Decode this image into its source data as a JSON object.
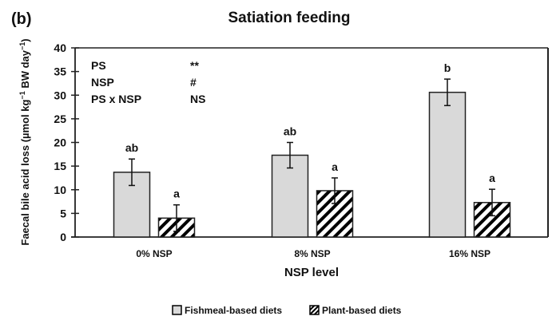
{
  "panel_label": "(b)",
  "chart_data": {
    "type": "bar",
    "title": "Satiation feeding",
    "xlabel": "NSP level",
    "ylabel": "Faecal bile acid loss (µmol kg⁻¹ BW day⁻¹)",
    "ylabel_parts": {
      "base": "Faecal bile acid loss (µmol kg",
      "sup1": "−1",
      "mid": " BW day",
      "sup2": "−1",
      "end": ")"
    },
    "ylim": [
      0,
      40
    ],
    "yticks": [
      0,
      5,
      10,
      15,
      20,
      25,
      30,
      35,
      40
    ],
    "grid": false,
    "categories": [
      "0% NSP",
      "8% NSP",
      "16% NSP"
    ],
    "series": [
      {
        "name": "Fishmeal-based diets",
        "pattern": "solid-light-gray",
        "color": "#d9d9d9",
        "values": [
          13.7,
          17.3,
          30.6
        ],
        "errors": [
          2.8,
          2.7,
          2.8
        ],
        "letters": [
          "ab",
          "ab",
          "b"
        ]
      },
      {
        "name": "Plant-based diets",
        "pattern": "diagonal-hatch",
        "color": "#000000",
        "values": [
          4.0,
          9.8,
          7.3
        ],
        "errors": [
          2.8,
          2.7,
          2.8
        ],
        "letters": [
          "a",
          "a",
          "a"
        ]
      }
    ],
    "annotations": [
      {
        "factor": "PS",
        "significance": "**"
      },
      {
        "factor": "NSP",
        "significance": "#"
      },
      {
        "factor": "PS x NSP",
        "significance": "NS"
      }
    ],
    "legend_position": "bottom-center"
  }
}
